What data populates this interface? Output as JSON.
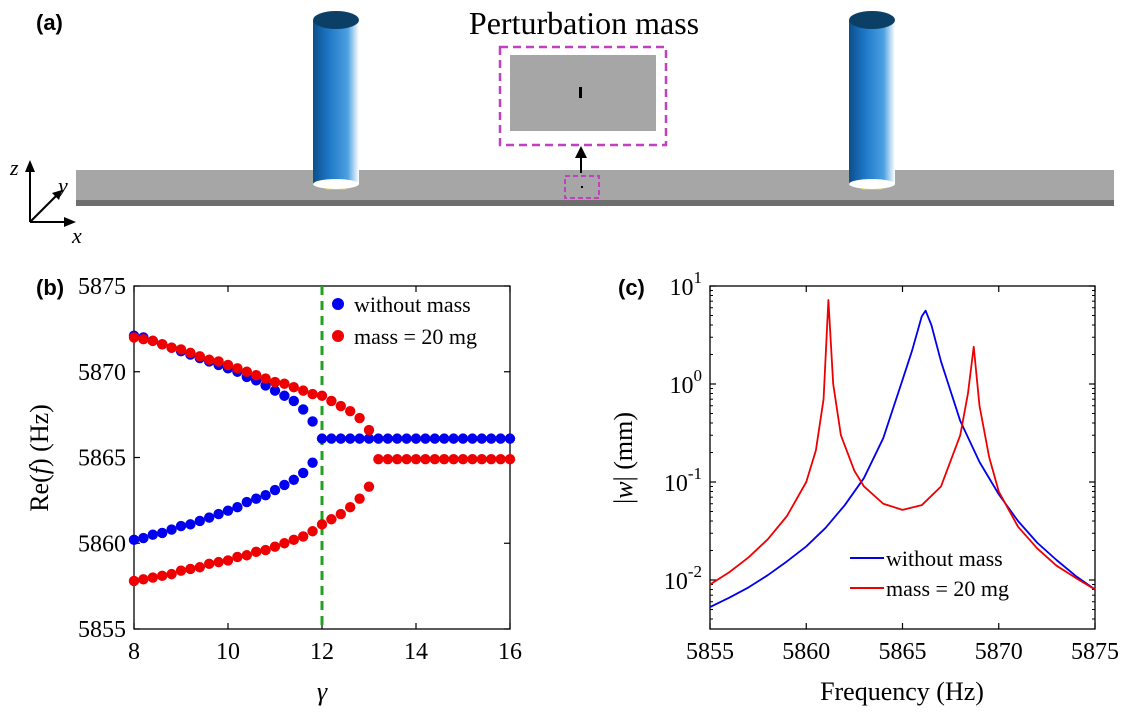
{
  "panels": {
    "a": "(a)",
    "b": "(b)",
    "c": "(c)"
  },
  "diagram": {
    "inset_title": "Perturbation mass",
    "axes": {
      "z": "z",
      "y": "y",
      "x": "x"
    },
    "colors": {
      "beam": "#a6a6a6",
      "cylinder": "#1f78c8",
      "inset_border": "#c040c0",
      "foot": "#e0c000"
    }
  },
  "chart_data": [
    {
      "type": "scatter",
      "title": "",
      "xlabel": "γ",
      "ylabel_prefix": "Re(",
      "ylabel_var": "f",
      "ylabel_suffix": ") (Hz)",
      "xlim": [
        8,
        16
      ],
      "ylim": [
        5855,
        5875
      ],
      "xticks": [
        "8",
        "10",
        "12",
        "14",
        "16"
      ],
      "yticks": [
        "5855",
        "5860",
        "5865",
        "5870",
        "5875"
      ],
      "legend_position": "top-right",
      "vline": {
        "x": 12,
        "color": "#22a022",
        "style": "dashed"
      },
      "series": [
        {
          "name": "without mass",
          "color": "#0000ee",
          "branches": [
            {
              "x": [
                8.0,
                8.2,
                8.4,
                8.6,
                8.8,
                9.0,
                9.2,
                9.4,
                9.6,
                9.8,
                10.0,
                10.2,
                10.4,
                10.6,
                10.8,
                11.0,
                11.2,
                11.4,
                11.6,
                11.8
              ],
              "y": [
                5872.1,
                5872.0,
                5871.8,
                5871.6,
                5871.4,
                5871.2,
                5871.0,
                5870.8,
                5870.6,
                5870.4,
                5870.2,
                5870.0,
                5869.7,
                5869.5,
                5869.2,
                5868.9,
                5868.6,
                5868.3,
                5867.8,
                5867.1
              ]
            },
            {
              "x": [
                8.0,
                8.2,
                8.4,
                8.6,
                8.8,
                9.0,
                9.2,
                9.4,
                9.6,
                9.8,
                10.0,
                10.2,
                10.4,
                10.6,
                10.8,
                11.0,
                11.2,
                11.4,
                11.6,
                11.8
              ],
              "y": [
                5860.2,
                5860.3,
                5860.5,
                5860.6,
                5860.8,
                5861.0,
                5861.1,
                5861.3,
                5861.5,
                5861.7,
                5861.9,
                5862.1,
                5862.4,
                5862.6,
                5862.8,
                5863.1,
                5863.4,
                5863.7,
                5864.1,
                5864.7
              ]
            },
            {
              "x": [
                12.0,
                12.2,
                12.4,
                12.6,
                12.8,
                13.0,
                13.2,
                13.4,
                13.6,
                13.8,
                14.0,
                14.2,
                14.4,
                14.6,
                14.8,
                15.0,
                15.2,
                15.4,
                15.6,
                15.8,
                16.0
              ],
              "y": [
                5866.1,
                5866.1,
                5866.1,
                5866.1,
                5866.1,
                5866.1,
                5866.1,
                5866.1,
                5866.1,
                5866.1,
                5866.1,
                5866.1,
                5866.1,
                5866.1,
                5866.1,
                5866.1,
                5866.1,
                5866.1,
                5866.1,
                5866.1,
                5866.1
              ]
            }
          ]
        },
        {
          "name": "mass = 20 mg",
          "color": "#ee0000",
          "branches": [
            {
              "x": [
                8.0,
                8.2,
                8.4,
                8.6,
                8.8,
                9.0,
                9.2,
                9.4,
                9.6,
                9.8,
                10.0,
                10.2,
                10.4,
                10.6,
                10.8,
                11.0,
                11.2,
                11.4,
                11.6,
                11.8,
                12.0,
                12.2,
                12.4,
                12.6,
                12.8,
                13.0
              ],
              "y": [
                5872.0,
                5871.9,
                5871.8,
                5871.6,
                5871.4,
                5871.3,
                5871.1,
                5870.9,
                5870.7,
                5870.6,
                5870.4,
                5870.2,
                5870.0,
                5869.8,
                5869.6,
                5869.4,
                5869.3,
                5869.1,
                5868.9,
                5868.7,
                5868.6,
                5868.3,
                5868.0,
                5867.7,
                5867.3,
                5866.6
              ]
            },
            {
              "x": [
                8.0,
                8.2,
                8.4,
                8.6,
                8.8,
                9.0,
                9.2,
                9.4,
                9.6,
                9.8,
                10.0,
                10.2,
                10.4,
                10.6,
                10.8,
                11.0,
                11.2,
                11.4,
                11.6,
                11.8,
                12.0,
                12.2,
                12.4,
                12.6,
                12.8,
                13.0
              ],
              "y": [
                5857.8,
                5857.9,
                5858.0,
                5858.1,
                5858.2,
                5858.4,
                5858.5,
                5858.6,
                5858.8,
                5858.9,
                5859.0,
                5859.2,
                5859.3,
                5859.5,
                5859.6,
                5859.8,
                5860.0,
                5860.2,
                5860.4,
                5860.7,
                5861.1,
                5861.4,
                5861.7,
                5862.1,
                5862.6,
                5863.3
              ]
            },
            {
              "x": [
                13.2,
                13.4,
                13.6,
                13.8,
                14.0,
                14.2,
                14.4,
                14.6,
                14.8,
                15.0,
                15.2,
                15.4,
                15.6,
                15.8,
                16.0
              ],
              "y": [
                5864.9,
                5864.9,
                5864.9,
                5864.9,
                5864.9,
                5864.9,
                5864.9,
                5864.9,
                5864.9,
                5864.9,
                5864.9,
                5864.9,
                5864.9,
                5864.9,
                5864.9
              ]
            }
          ]
        }
      ]
    },
    {
      "type": "line",
      "title": "",
      "xlabel": "Frequency (Hz)",
      "ylabel_prefix": "|",
      "ylabel_var": "w",
      "ylabel_suffix": "| (mm)",
      "xlim": [
        5855,
        5875
      ],
      "ylim_log10": [
        -2.5,
        1
      ],
      "log_y": true,
      "xticks": [
        "5855",
        "5860",
        "5865",
        "5870",
        "5875"
      ],
      "yticks": [
        {
          "base": "10",
          "exp": "1",
          "value": 10
        },
        {
          "base": "10",
          "exp": "0",
          "value": 1
        },
        {
          "base": "10",
          "exp": "-1",
          "value": 0.1
        },
        {
          "base": "10",
          "exp": "-2",
          "value": 0.01
        }
      ],
      "legend_position": "bottom-center",
      "series": [
        {
          "name": "without mass",
          "color": "#0000ee",
          "x": [
            5855,
            5856,
            5857,
            5858,
            5859,
            5860,
            5861,
            5862,
            5863,
            5864,
            5865,
            5865.5,
            5866,
            5866.2,
            5866.5,
            5867,
            5868,
            5869,
            5870,
            5871,
            5872,
            5873,
            5874,
            5875
          ],
          "y": [
            0.0053,
            0.0066,
            0.0084,
            0.0112,
            0.0155,
            0.022,
            0.034,
            0.058,
            0.11,
            0.28,
            1.1,
            2.2,
            4.9,
            5.6,
            4.0,
            1.7,
            0.42,
            0.16,
            0.075,
            0.04,
            0.024,
            0.016,
            0.011,
            0.008
          ]
        },
        {
          "name": "mass = 20 mg",
          "color": "#ee0000",
          "x": [
            5855,
            5856,
            5857,
            5858,
            5859,
            5860,
            5860.5,
            5860.9,
            5861.15,
            5861.4,
            5861.8,
            5862.5,
            5863,
            5864,
            5865,
            5866,
            5867,
            5868,
            5868.4,
            5868.7,
            5869,
            5869.5,
            5870,
            5871,
            5872,
            5873,
            5874,
            5875
          ],
          "y": [
            0.009,
            0.012,
            0.017,
            0.026,
            0.045,
            0.1,
            0.21,
            0.7,
            7.2,
            1.0,
            0.3,
            0.13,
            0.09,
            0.06,
            0.052,
            0.058,
            0.09,
            0.3,
            0.8,
            2.4,
            0.6,
            0.18,
            0.08,
            0.035,
            0.021,
            0.014,
            0.0105,
            0.008
          ]
        }
      ]
    }
  ]
}
